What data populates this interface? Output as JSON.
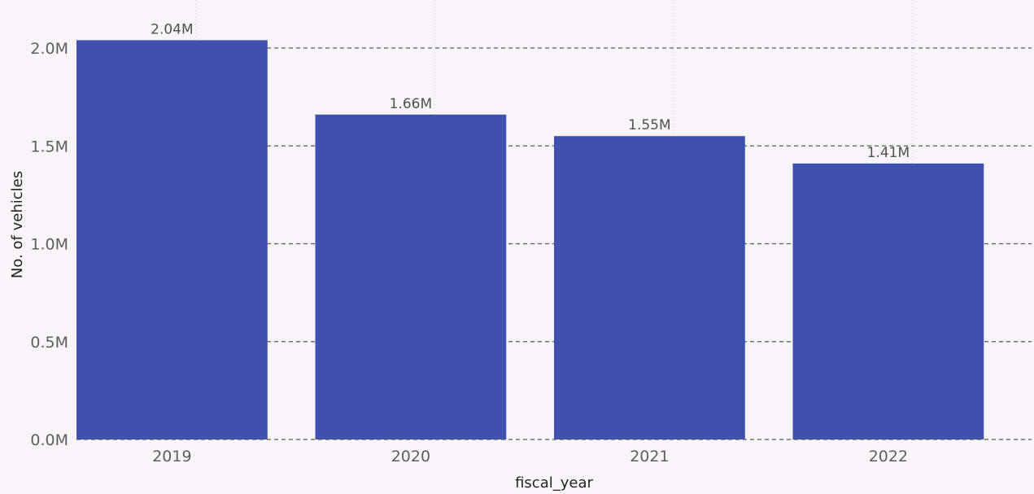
{
  "chart_data": {
    "type": "bar",
    "categories": [
      "2019",
      "2020",
      "2021",
      "2022"
    ],
    "values": [
      2040000,
      1660000,
      1550000,
      1410000
    ],
    "data_labels": [
      "2.04M",
      "1.66M",
      "1.55M",
      "1.41M"
    ],
    "y_ticks": [
      0,
      500000,
      1000000,
      1500000,
      2000000
    ],
    "y_tick_labels": [
      "0.0M",
      "0.5M",
      "1.0M",
      "1.5M",
      "2.0M"
    ],
    "ylim": [
      0,
      2000000
    ],
    "title": "",
    "xlabel": "fiscal_year",
    "ylabel": "No. of vehicles",
    "grid": true,
    "bar_color": "#4150b0",
    "background_color": "#f9f4fa",
    "gridline_color": "#5a5a5a"
  }
}
